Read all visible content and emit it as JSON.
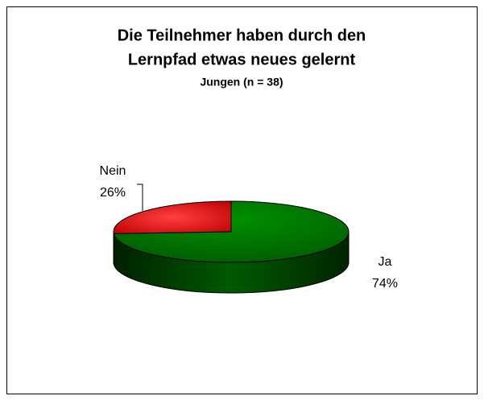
{
  "chart_data": {
    "type": "pie3d",
    "title": [
      "Die Teilnehmer haben durch den",
      "Lernpfad etwas neues gelernt"
    ],
    "subtitle": "Jungen (n = 38)",
    "categories": [
      "Nein",
      "Ja"
    ],
    "values": [
      26,
      74
    ],
    "value_labels": [
      "26%",
      "74%"
    ],
    "colors": [
      "#ff0000",
      "#008000"
    ]
  }
}
